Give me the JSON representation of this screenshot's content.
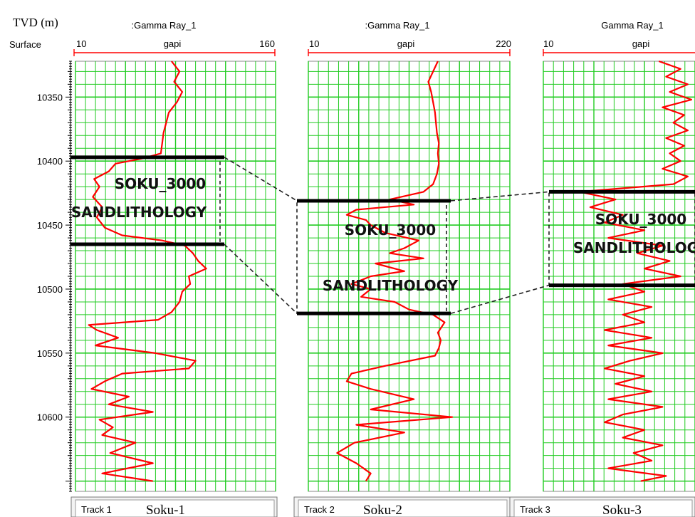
{
  "depth_axis": {
    "title": "TVD (m)",
    "reference": "Surface",
    "ticks": [
      10350,
      10400,
      10450,
      10500,
      10550,
      10600
    ],
    "tick_labels": [
      "10350",
      "10400",
      "10450",
      "10500",
      "10550",
      "10600"
    ]
  },
  "chart_data": {
    "type": "line",
    "y_axis": "TVD (m)",
    "ylim": [
      10322,
      10658
    ],
    "y_inverted": true,
    "grid": true,
    "line_color": "#ff0000",
    "grid_color": "#22cc22",
    "tracks": [
      {
        "track_label": "Track 1",
        "well_name": "Soku-1",
        "curve_name": ":Gamma Ray_1",
        "unit": "gapi",
        "scale_min": "10",
        "scale_max": "160",
        "xlim": [
          10,
          160
        ],
        "zone_top": 10397,
        "zone_base": 10465,
        "zone_label_1": "SOKU_3000",
        "zone_label_2": "SANDLITHOLOGY",
        "curve": {
          "depth": [
            10322,
            10330,
            10338,
            10346,
            10354,
            10362,
            10370,
            10378,
            10386,
            10394,
            10398,
            10402,
            10408,
            10414,
            10420,
            10428,
            10436,
            10444,
            10452,
            10458,
            10462,
            10466,
            10472,
            10478,
            10484,
            10490,
            10496,
            10502,
            10510,
            10518,
            10524,
            10528,
            10532,
            10538,
            10544,
            10550,
            10556,
            10562,
            10566,
            10572,
            10578,
            10584,
            10590,
            10596,
            10602,
            10608,
            10614,
            10620,
            10628,
            10636,
            10644,
            10650
          ],
          "gr": [
            82,
            88,
            84,
            90,
            86,
            80,
            78,
            76,
            75,
            74,
            60,
            40,
            35,
            24,
            28,
            23,
            30,
            26,
            32,
            45,
            75,
            92,
            98,
            102,
            108,
            95,
            96,
            90,
            88,
            82,
            72,
            20,
            26,
            42,
            25,
            70,
            100,
            95,
            45,
            32,
            22,
            50,
            35,
            68,
            28,
            38,
            30,
            55,
            36,
            68,
            30,
            68
          ]
        }
      },
      {
        "track_label": "Track 2",
        "well_name": "Soku-2",
        "curve_name": ":Gamma Ray_1",
        "unit": "gapi",
        "scale_min": "10",
        "scale_max": "220",
        "xlim": [
          10,
          220
        ],
        "zone_top": 10431,
        "zone_base": 10519,
        "zone_label_1": "SOKU_3000",
        "zone_label_2": "SANDLITHOLOGY",
        "curve": {
          "depth": [
            10322,
            10330,
            10338,
            10346,
            10354,
            10362,
            10370,
            10378,
            10386,
            10394,
            10402,
            10410,
            10418,
            10424,
            10430,
            10434,
            10438,
            10442,
            10446,
            10450,
            10456,
            10462,
            10468,
            10472,
            10476,
            10480,
            10486,
            10490,
            10496,
            10500,
            10506,
            10510,
            10516,
            10520,
            10526,
            10534,
            10540,
            10546,
            10552,
            10560,
            10566,
            10572,
            10578,
            10586,
            10594,
            10600,
            10606,
            10612,
            10620,
            10628,
            10636,
            10644,
            10650
          ],
          "gr": [
            145,
            140,
            135,
            138,
            140,
            142,
            143,
            144,
            146,
            145,
            146,
            144,
            140,
            130,
            95,
            120,
            60,
            50,
            70,
            75,
            90,
            125,
            110,
            95,
            130,
            80,
            110,
            75,
            55,
            75,
            65,
            100,
            115,
            140,
            152,
            145,
            148,
            146,
            142,
            90,
            55,
            50,
            75,
            120,
            75,
            160,
            60,
            110,
            58,
            40,
            60,
            75,
            70
          ]
        }
      },
      {
        "track_label": "Track 3",
        "well_name": "Soku-3",
        "curve_name": "Gamma Ray_1",
        "unit": "gapi",
        "scale_min": "10",
        "scale_max": "",
        "xlim": [
          10,
          220
        ],
        "zone_top": 10424,
        "zone_base": 10497,
        "zone_label_1": "SOKU_3000",
        "zone_label_2": "SANDLITHOLOGY",
        "curve": {
          "depth": [
            10322,
            10328,
            10334,
            10340,
            10346,
            10352,
            10358,
            10364,
            10370,
            10376,
            10382,
            10388,
            10394,
            10400,
            10406,
            10412,
            10418,
            10424,
            10430,
            10436,
            10442,
            10448,
            10454,
            10460,
            10466,
            10472,
            10478,
            10484,
            10490,
            10496,
            10502,
            10508,
            10514,
            10520,
            10526,
            10532,
            10538,
            10544,
            10550,
            10556,
            10562,
            10568,
            10574,
            10580,
            10586,
            10592,
            10598,
            10604,
            10610,
            10616,
            10622,
            10628,
            10634,
            10640,
            10646,
            10650
          ],
          "gr": [
            170,
            200,
            180,
            210,
            185,
            215,
            175,
            205,
            190,
            210,
            180,
            205,
            185,
            200,
            175,
            210,
            190,
            60,
            110,
            75,
            120,
            95,
            150,
            100,
            175,
            140,
            185,
            150,
            200,
            120,
            150,
            100,
            160,
            120,
            150,
            95,
            160,
            100,
            175,
            130,
            95,
            150,
            110,
            160,
            100,
            175,
            120,
            95,
            150,
            120,
            175,
            135,
            160,
            100,
            180,
            145
          ]
        }
      }
    ]
  }
}
